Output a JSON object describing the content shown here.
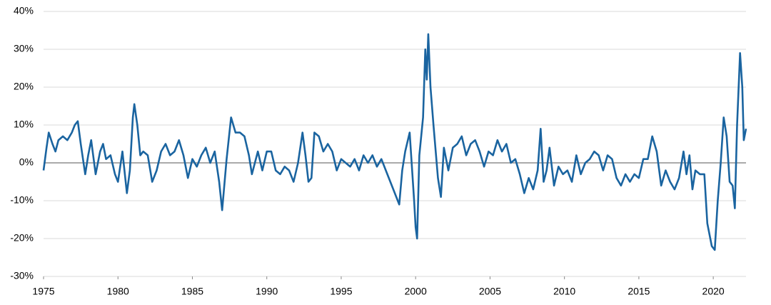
{
  "chart_data": {
    "type": "line",
    "color": "#1a64a0",
    "grid": true,
    "xlim": [
      1975,
      2022.2
    ],
    "xticks": [
      1975,
      1980,
      1985,
      1990,
      1995,
      2000,
      2005,
      2010,
      2015,
      2020
    ],
    "ylim": [
      -30,
      40
    ],
    "yticks": [
      {
        "value": -30,
        "label": "-30%"
      },
      {
        "value": -20,
        "label": "-20%"
      },
      {
        "value": -10,
        "label": "-10%"
      },
      {
        "value": 0,
        "label": "0%"
      },
      {
        "value": 10,
        "label": "10%"
      },
      {
        "value": 20,
        "label": "20%"
      },
      {
        "value": 30,
        "label": "30%"
      },
      {
        "value": 40,
        "label": "40%"
      }
    ],
    "x": [
      1975.0,
      1975.2,
      1975.35,
      1975.6,
      1975.8,
      1976.0,
      1976.3,
      1976.6,
      1976.9,
      1977.1,
      1977.3,
      1977.5,
      1977.8,
      1978.0,
      1978.2,
      1978.5,
      1978.8,
      1979.0,
      1979.2,
      1979.5,
      1979.8,
      1980.0,
      1980.3,
      1980.6,
      1980.8,
      1981.0,
      1981.1,
      1981.3,
      1981.5,
      1981.7,
      1982.0,
      1982.3,
      1982.6,
      1982.9,
      1983.2,
      1983.5,
      1983.8,
      1984.1,
      1984.4,
      1984.7,
      1985.0,
      1985.3,
      1985.6,
      1985.9,
      1986.2,
      1986.5,
      1986.8,
      1987.0,
      1987.3,
      1987.6,
      1987.9,
      1988.2,
      1988.5,
      1988.8,
      1989.0,
      1989.4,
      1989.7,
      1990.0,
      1990.3,
      1990.6,
      1990.9,
      1991.2,
      1991.5,
      1991.8,
      1992.1,
      1992.4,
      1992.6,
      1992.8,
      1993.0,
      1993.2,
      1993.5,
      1993.8,
      1994.1,
      1994.4,
      1994.7,
      1995.0,
      1995.3,
      1995.6,
      1995.9,
      1996.2,
      1996.5,
      1996.8,
      1997.1,
      1997.4,
      1997.7,
      1998.0,
      1998.3,
      1998.6,
      1998.9,
      1999.1,
      1999.3,
      1999.6,
      1999.9,
      2000.0,
      2000.1,
      2000.25,
      2000.5,
      2000.65,
      2000.75,
      2000.85,
      2001.0,
      2001.2,
      2001.5,
      2001.7,
      2001.9,
      2002.2,
      2002.5,
      2002.8,
      2003.1,
      2003.4,
      2003.7,
      2004.0,
      2004.3,
      2004.6,
      2004.9,
      2005.2,
      2005.5,
      2005.8,
      2006.1,
      2006.4,
      2006.7,
      2007.0,
      2007.3,
      2007.6,
      2007.9,
      2008.2,
      2008.4,
      2008.6,
      2008.8,
      2009.0,
      2009.3,
      2009.6,
      2009.9,
      2010.2,
      2010.5,
      2010.8,
      2011.1,
      2011.4,
      2011.7,
      2012.0,
      2012.3,
      2012.6,
      2012.9,
      2013.2,
      2013.5,
      2013.8,
      2014.1,
      2014.4,
      2014.7,
      2015.0,
      2015.3,
      2015.6,
      2015.9,
      2016.2,
      2016.5,
      2016.8,
      2017.1,
      2017.4,
      2017.7,
      2018.0,
      2018.2,
      2018.4,
      2018.6,
      2018.8,
      2019.1,
      2019.4,
      2019.6,
      2019.9,
      2020.1,
      2020.3,
      2020.5,
      2020.7,
      2020.9,
      2021.1,
      2021.3,
      2021.45,
      2021.6,
      2021.8,
      2021.95,
      2022.05,
      2022.2
    ],
    "values": [
      -2,
      4,
      8,
      5,
      3,
      6,
      7,
      6,
      8,
      10,
      11,
      5,
      -3,
      2,
      6,
      -3,
      3,
      5,
      1,
      2,
      -3,
      -5,
      3,
      -8,
      -2,
      12,
      15.5,
      10,
      2,
      3,
      2,
      -5,
      -2,
      3,
      5,
      2,
      3,
      6,
      2,
      -4,
      1,
      -1,
      2,
      4,
      0,
      3,
      -5,
      -12.5,
      1,
      12,
      8,
      8,
      7,
      2,
      -3,
      3,
      -2,
      3,
      3,
      -2,
      -3,
      -1,
      -2,
      -5,
      0,
      8,
      2,
      -5,
      -4,
      8,
      7,
      3,
      5,
      3,
      -2,
      1,
      0,
      -1,
      1,
      -2,
      2,
      0,
      2,
      -1,
      1,
      -2,
      -5,
      -8,
      -11,
      -2,
      3,
      8,
      -10,
      -17,
      -20,
      2,
      12,
      30,
      22,
      34,
      20,
      10,
      -4,
      -9,
      4,
      -2,
      4,
      5,
      7,
      2,
      5,
      6,
      3,
      -1,
      3,
      2,
      6,
      3,
      5,
      0,
      1,
      -3,
      -8,
      -4,
      -7,
      -2,
      9,
      -5,
      -2,
      4,
      -6,
      -1,
      -3,
      -2,
      -5,
      2,
      -3,
      0,
      1,
      3,
      2,
      -2,
      2,
      1,
      -4,
      -6,
      -3,
      -5,
      -3,
      -4,
      1,
      1,
      7,
      3,
      -6,
      -2,
      -5,
      -7,
      -4,
      3,
      -3,
      2,
      -7,
      -2,
      -3,
      -3,
      -16,
      -22,
      -23,
      -10,
      0,
      12,
      7,
      -5,
      -6,
      -12,
      10,
      29,
      20,
      6,
      9
    ]
  }
}
